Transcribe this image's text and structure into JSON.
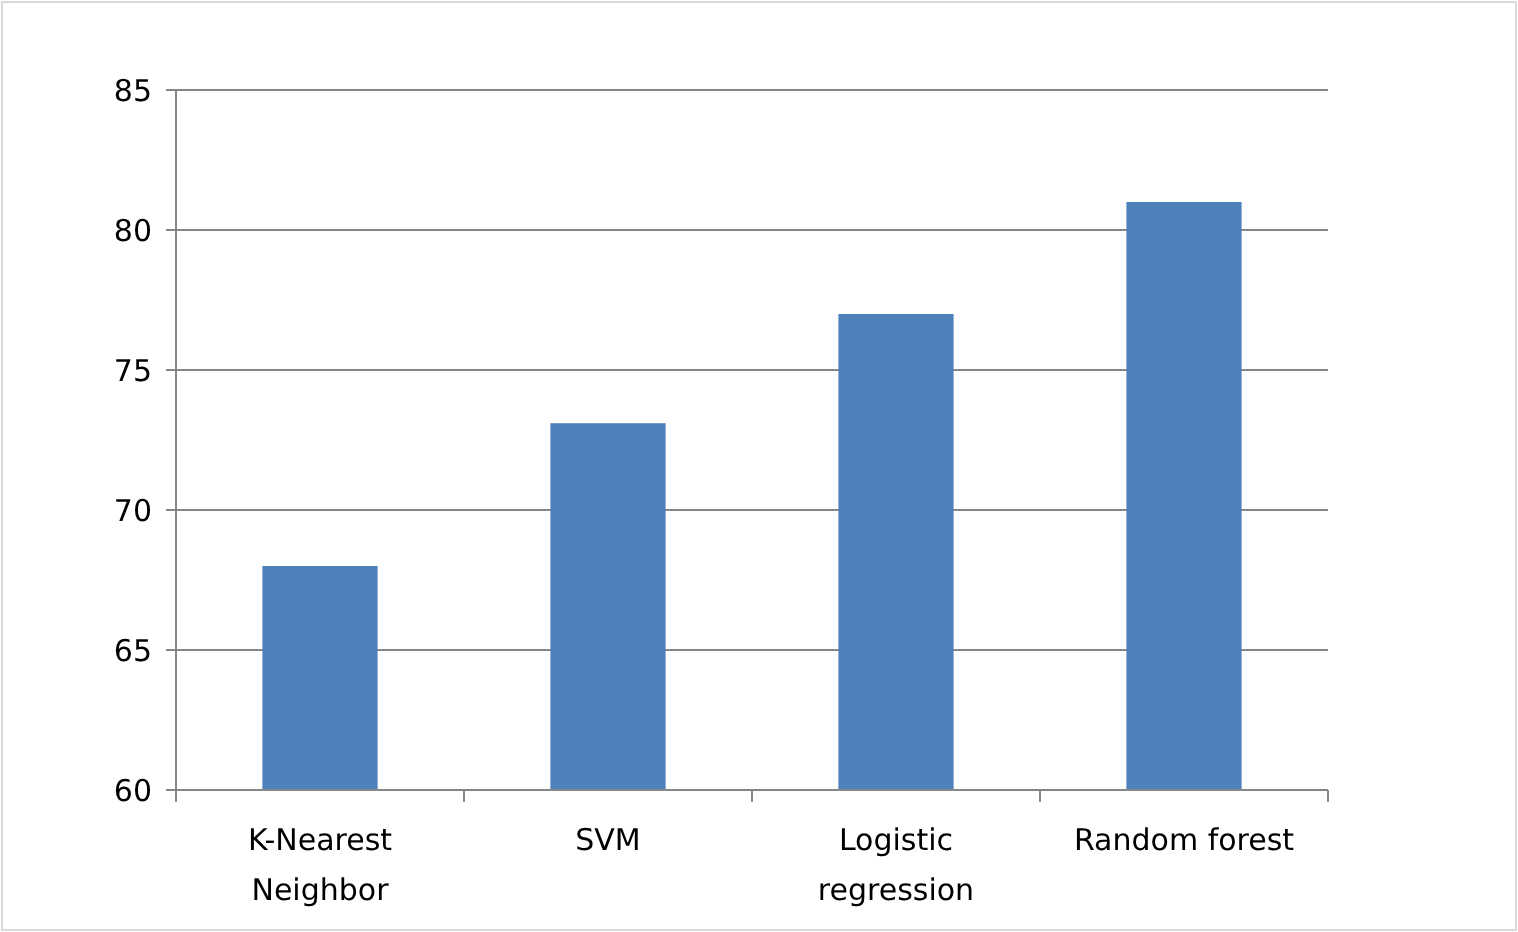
{
  "chart_data": {
    "type": "bar",
    "categories": [
      "K-Nearest Neighbor",
      "SVM",
      "Logistic regression",
      "Random forest"
    ],
    "values": [
      68,
      73.1,
      77,
      81
    ],
    "color": "#4f81bd",
    "ylim": [
      60,
      85
    ],
    "yticks": [
      60,
      65,
      70,
      75,
      80,
      85
    ],
    "grid": "y"
  }
}
